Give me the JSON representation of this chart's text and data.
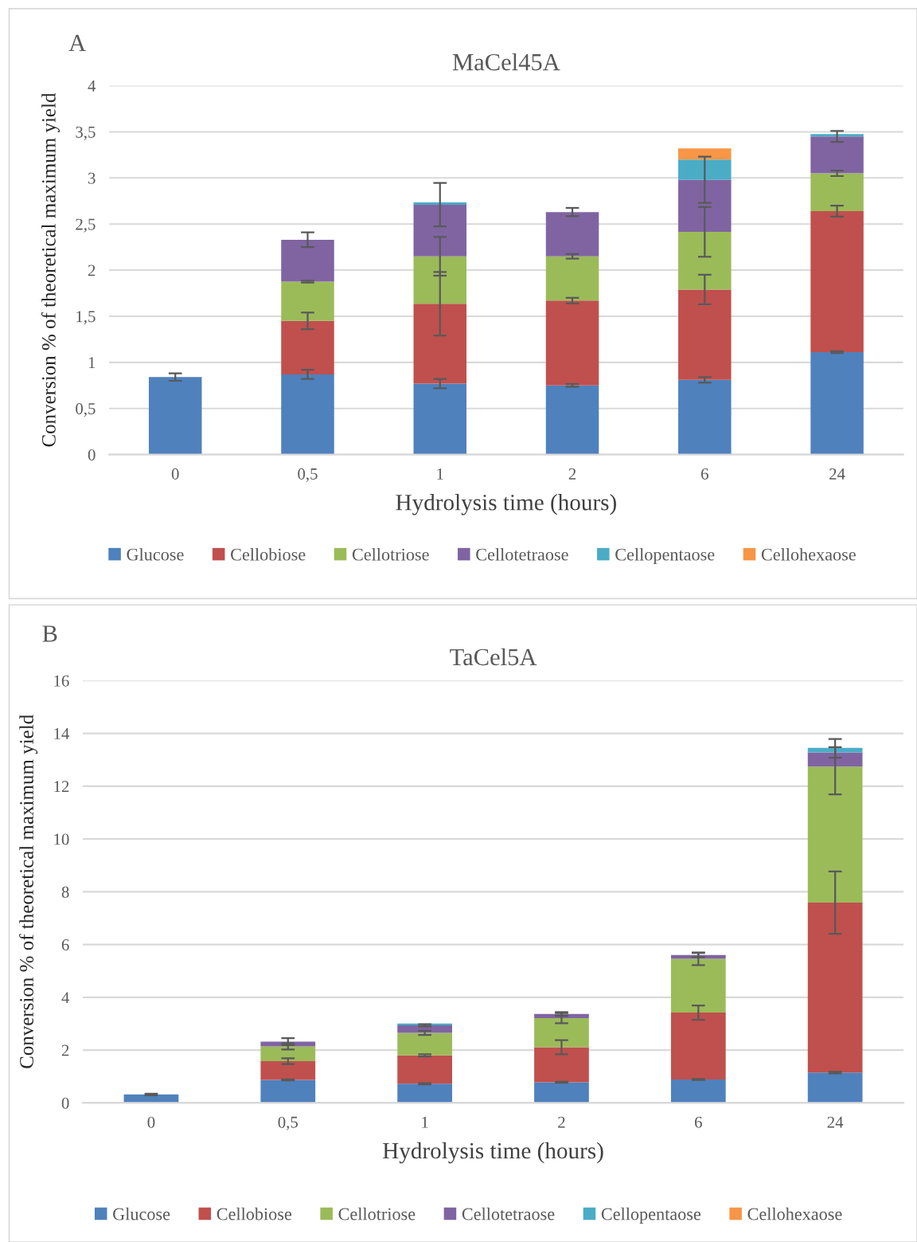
{
  "chart_data": [
    {
      "type": "bar",
      "stacked": true,
      "title": "MaCel45A",
      "annotations": [
        "A"
      ],
      "xlabel": "Hydrolysis time (hours)",
      "ylabel": "Conversion % of theoretical maximum yield",
      "categories": [
        "0",
        "0,5",
        "1",
        "2",
        "6",
        "24"
      ],
      "ylim": [
        0,
        4
      ],
      "yticks": [
        0,
        {
          "value": 0.5,
          "label": "0,5"
        },
        1,
        {
          "value": 1.5,
          "label": "1,5"
        },
        2,
        {
          "value": 2.5,
          "label": "2,5"
        },
        3,
        {
          "value": 3.5,
          "label": "3,5"
        },
        4
      ],
      "grid": "y",
      "legend": "bottom",
      "series": [
        {
          "name": "Glucose",
          "color": "#4f81bd",
          "values": [
            0.84,
            0.87,
            0.77,
            0.75,
            0.81,
            1.11
          ],
          "errors": [
            0.04,
            0.05,
            0.05,
            0.015,
            0.03,
            0.01
          ]
        },
        {
          "name": "Cellobiose",
          "color": "#c0504d",
          "values": [
            null,
            0.58,
            0.865,
            0.92,
            0.98,
            1.53
          ],
          "errors": [
            null,
            0.09,
            0.345,
            0.03,
            0.16,
            0.06
          ]
        },
        {
          "name": "Cellotriose",
          "color": "#9bbb59",
          "values": [
            null,
            0.425,
            0.515,
            0.48,
            0.625,
            0.41
          ],
          "errors": [
            null,
            0.01,
            0.21,
            0.025,
            0.27,
            0.03
          ]
        },
        {
          "name": "Cellotetraose",
          "color": "#8064a2",
          "values": [
            null,
            0.455,
            0.56,
            0.48,
            0.565,
            0.4
          ],
          "errors": [
            null,
            0.08,
            0.235,
            0.045,
            0.25,
            0.06
          ]
        },
        {
          "name": "Cellopentaose",
          "color": "#4bacc6",
          "values": [
            null,
            null,
            0.025,
            null,
            0.22,
            0.025
          ],
          "errors": [
            null,
            null,
            null,
            null,
            null,
            null
          ]
        },
        {
          "name": "Cellohexaose",
          "color": "#f79646",
          "values": [
            null,
            null,
            null,
            null,
            0.12,
            null
          ],
          "errors": [
            null,
            null,
            null,
            null,
            null,
            null
          ]
        }
      ]
    },
    {
      "type": "bar",
      "stacked": true,
      "title": "TaCel5A",
      "annotations": [
        "B"
      ],
      "xlabel": "Hydrolysis time (hours)",
      "ylabel": "Conversion % of theoretical maximum yield",
      "categories": [
        "0",
        "0,5",
        "1",
        "2",
        "6",
        "24"
      ],
      "ylim": [
        0,
        16
      ],
      "yticks": [
        0,
        2,
        4,
        6,
        8,
        10,
        12,
        14,
        16
      ],
      "grid": "y",
      "legend": "bottom",
      "series": [
        {
          "name": "Glucose",
          "color": "#4f81bd",
          "values": [
            0.32,
            0.87,
            0.725,
            0.78,
            0.885,
            1.15
          ],
          "errors": [
            0.03,
            0.02,
            0.02,
            0.02,
            0.02,
            0.03
          ]
        },
        {
          "name": "Cellobiose",
          "color": "#c0504d",
          "values": [
            null,
            0.71,
            1.075,
            1.33,
            2.535,
            6.44
          ],
          "errors": [
            null,
            0.11,
            0.04,
            0.27,
            0.27,
            1.18
          ]
        },
        {
          "name": "Cellotriose",
          "color": "#9bbb59",
          "values": [
            null,
            0.56,
            0.855,
            1.1,
            2.04,
            5.15
          ],
          "errors": [
            null,
            0.12,
            0.08,
            0.19,
            0.24,
            1.05
          ]
        },
        {
          "name": "Cellotetraose",
          "color": "#8064a2",
          "values": [
            null,
            0.18,
            0.285,
            0.16,
            0.14,
            0.54
          ],
          "errors": [
            null,
            0.13,
            0.04,
            0.07,
            0.08,
            0.2
          ]
        },
        {
          "name": "Cellopentaose",
          "color": "#4bacc6",
          "values": [
            null,
            null,
            0.07,
            null,
            null,
            0.17
          ],
          "errors": [
            null,
            null,
            null,
            null,
            null,
            null
          ]
        },
        {
          "name": "Cellohexaose",
          "color": "#f79646",
          "values": [
            null,
            null,
            null,
            null,
            null,
            null
          ],
          "errors": [
            null,
            null,
            null,
            null,
            null,
            null
          ]
        }
      ]
    }
  ]
}
